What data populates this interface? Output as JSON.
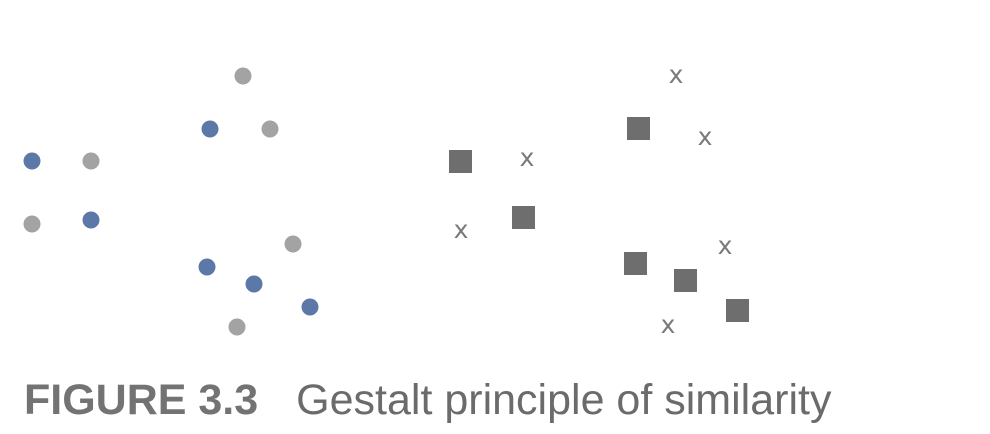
{
  "colors": {
    "blue_dot": "#5b78a8",
    "gray_dot": "#a3a3a3",
    "square": "#6e6e6e",
    "x_mark": "#7a7a7a",
    "caption": "#6b6b6b"
  },
  "x_mark_glyph": "x",
  "caption": {
    "number": "FIGURE 3.3",
    "title": "Gestalt principle of similarity"
  }
}
